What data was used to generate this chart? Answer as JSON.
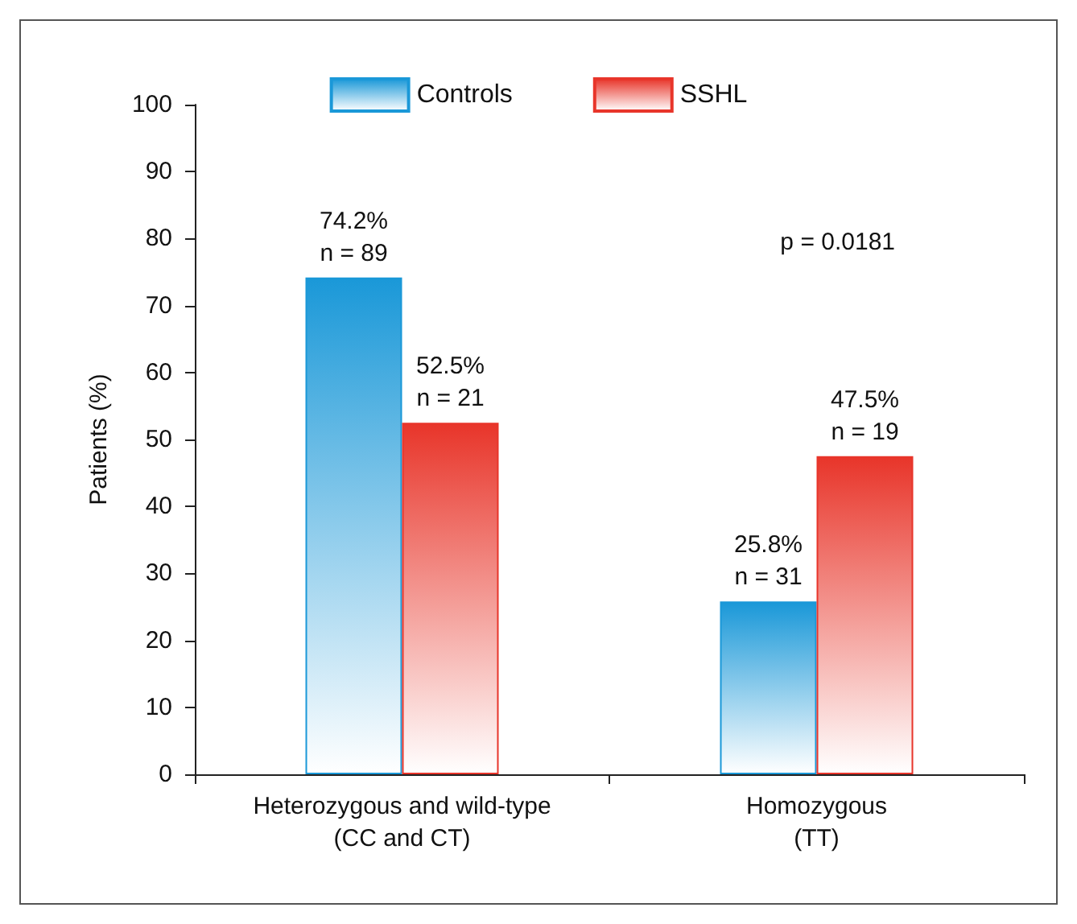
{
  "chart_data": {
    "type": "bar",
    "ylabel": "Patients (%)",
    "categories": [
      "Heterozygous and wild-type\n(CC and CT)",
      "Homozygous\n(TT)"
    ],
    "series": [
      {
        "name": "Controls",
        "color": "#1a98d8",
        "values": [
          74.2,
          25.8
        ],
        "value_labels": [
          "74.2%\nn = 89",
          "25.8%\nn = 31"
        ]
      },
      {
        "name": "SSHL",
        "color": "#e8352a",
        "values": [
          52.5,
          47.5
        ],
        "value_labels": [
          "52.5%\nn = 21",
          "47.5%\nn = 19"
        ]
      }
    ],
    "annotations": [
      "p = 0.0181"
    ],
    "ylim": [
      0,
      100
    ],
    "yticks": [
      0,
      10,
      20,
      30,
      40,
      50,
      60,
      70,
      80,
      90,
      100
    ],
    "grid": false,
    "legend": "top"
  }
}
